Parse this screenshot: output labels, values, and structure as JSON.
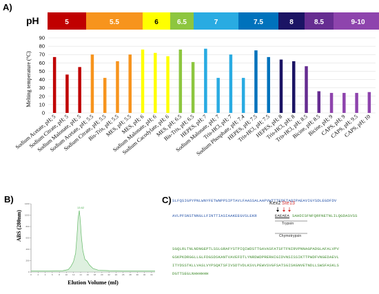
{
  "panels": {
    "a": "A)",
    "b": "B)",
    "c": "C)"
  },
  "chart_data": [
    {
      "type": "bar",
      "panel": "A)",
      "ylabel": "Melting temperature (°C)",
      "ylim": [
        0,
        90
      ],
      "yticks": [
        0,
        10,
        20,
        30,
        40,
        50,
        60,
        70,
        80,
        90
      ],
      "grid": true,
      "ph_legend": {
        "label": "pH",
        "items": [
          {
            "text": "5",
            "color": "#c00000"
          },
          {
            "text": "5.5",
            "color": "#f7941d"
          },
          {
            "text": "6",
            "color": "#ffff00"
          },
          {
            "text": "6.5",
            "color": "#8dc63f"
          },
          {
            "text": "7",
            "color": "#29abe2"
          },
          {
            "text": "7.5",
            "color": "#0072bc"
          },
          {
            "text": "8",
            "color": "#1b1464"
          },
          {
            "text": "8.5",
            "color": "#662d91"
          },
          {
            "text": "9-10",
            "color": "#8e44ad"
          }
        ]
      },
      "categories": [
        "Sodium Acetate, pH; 5",
        "Sodium Citrate, pH; 5",
        "Sodium Malonate, pH; 5",
        "Sodium Acetate, pH; 5.5",
        "Sodium Citrate, pH; 5.5",
        "Bis-Tris, pH; 5.5",
        "MES, pH; 5.5",
        "MES, pH; 6",
        "Sodium Malonate, pH; 6",
        "Sodium Cacodylate, pH; 6",
        "MES, pH; 6.5",
        "Bis-Tris, pH; 6.5",
        "HEPES, pH; 7",
        "Sodium Malonate, pH; 7",
        "Tris-HCl, pH; 7",
        "Sodium Phosphate, pH; 7.4",
        "HEPES, pH; 7.5",
        "Tris-HCl, pH; 7.5",
        "HEPES, pH; 8",
        "Tris-HCl, pH; 8",
        "Tris-HCl, pH; 8.5",
        "Bicine, pH; 8.5",
        "Bicine, pH; 9",
        "CAPS, pH; 9",
        "CAPS, pH; 9.5",
        "CAPS, pH; 10"
      ],
      "values": [
        67,
        46,
        55,
        70,
        42,
        62,
        70,
        76,
        72,
        68,
        76,
        61,
        77,
        42,
        70,
        42,
        75,
        67,
        64,
        62,
        56,
        26,
        24,
        24,
        24,
        25
      ],
      "bar_colors": [
        "#c00000",
        "#c00000",
        "#c00000",
        "#f7941d",
        "#f7941d",
        "#f7941d",
        "#f7941d",
        "#ffff00",
        "#ffff00",
        "#ffff00",
        "#8dc63f",
        "#8dc63f",
        "#29abe2",
        "#29abe2",
        "#29abe2",
        "#29abe2",
        "#0072bc",
        "#0072bc",
        "#1b1464",
        "#1b1464",
        "#662d91",
        "#662d91",
        "#8e44ad",
        "#8e44ad",
        "#8e44ad",
        "#8e44ad"
      ]
    },
    {
      "type": "line",
      "panel": "B)",
      "xlabel": "Elution Volume (ml)",
      "ylabel": "ABS (280nm)",
      "xlim": [
        0,
        35
      ],
      "ylim": [
        0,
        1200
      ],
      "xticks": [
        0,
        2,
        4,
        6,
        8,
        10,
        12,
        14,
        16,
        18,
        20,
        22,
        24,
        26,
        28,
        30,
        32,
        34
      ],
      "yticks": [
        0,
        200,
        400,
        600,
        800,
        1000,
        1200
      ],
      "peak_label": "13.62",
      "series": [
        {
          "x": [
            0,
            5,
            9,
            10.5,
            11.3,
            12,
            12.6,
            13.0,
            13.3,
            13.62,
            13.9,
            14.2,
            14.6,
            15.2,
            15.8,
            16.5,
            17.5,
            19,
            22,
            26,
            30,
            34,
            35
          ],
          "y": [
            20,
            20,
            22,
            40,
            100,
            180,
            330,
            650,
            950,
            1080,
            900,
            620,
            380,
            220,
            190,
            120,
            60,
            30,
            22,
            20,
            20,
            20,
            20
          ],
          "color": "#4caf50"
        }
      ]
    }
  ],
  "sequence": {
    "line1": "SLFQSIGPYPNLWNYFETWNPPSIPTAVLFAASSALAAPVWTTTEDETAQIPAEAVIGYSDLEGDFDV",
    "line2a": "AVLPFSNSTNNGLLFINTTIASIAAKEEGVSLEKR",
    "line2b": "EAEAEA",
    "line2c": "SAHDISFNFQRFNETNLILQGDASVSS",
    "kex2": "Kex2",
    "ste13": "Ste13",
    "trypsin": "Trypsin",
    "chymotrypsin": "Chymotrypsin",
    "line3": "SGQLRLTNLNDNGEPTLSSLGRAFYSTPIQIWDSTTGAVASFATSFTFNIRVPNNAGPADGLAFALVPV",
    "line4": "GSKPKDRGGLLGLFDGSDSKANTVAVEFDTLYNRDWDPRERHIGIDVNSISSIKTTPWDFVNGEDAEVL",
    "line5": "ITYDSSTKLLVASLVYPSQKTSFIVSDTVDLKSVLPEWVSVGFSATSGISKGNVETNDLLSWSFASKLS",
    "line6": "DGTTSEGLNHHHHHH"
  }
}
